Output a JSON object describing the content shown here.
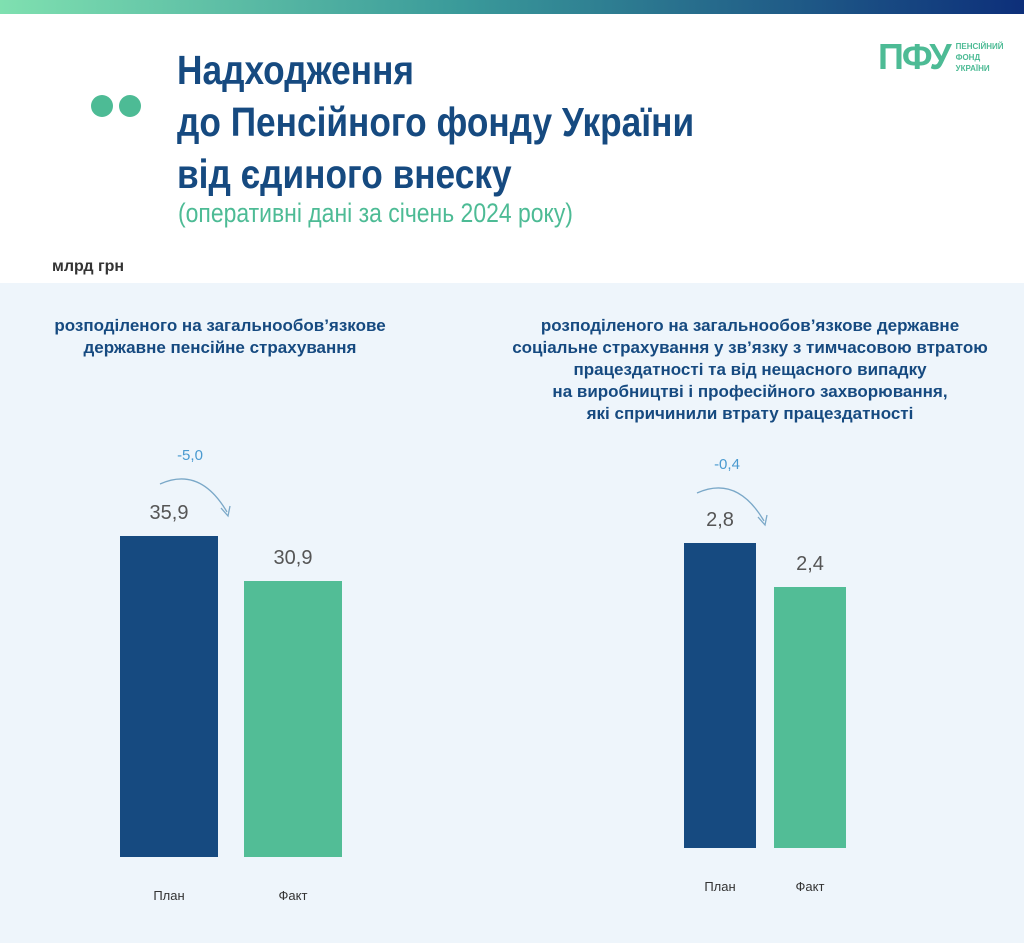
{
  "header": {
    "title_lines": [
      "Надходження",
      "до Пенсійного фонду України",
      "від єдиного внеску"
    ],
    "subtitle": "(оперативні дані за січень 2024 року)",
    "logo_big": "ПФУ",
    "logo_small": [
      "ПЕНСІЙНИЙ",
      "ФОНД",
      "УКРАЇНИ"
    ],
    "unit": "млрд грн"
  },
  "colors": {
    "plan": "#164a80",
    "fact": "#52bd96"
  },
  "chart_data": [
    {
      "type": "bar",
      "title": "розподіленого на загальнообов’язкове\nдержавне пенсійне страхування",
      "categories": [
        "План",
        "Факт"
      ],
      "values": [
        35.9,
        30.9
      ],
      "labels": [
        "35,9",
        "30,9"
      ],
      "difference": "-5,0",
      "ylabel": "млрд грн"
    },
    {
      "type": "bar",
      "title": "розподіленого на загальнообов’язкове державне\nсоціальне страхування у зв’язку з тимчасовою втратою\nпрацездатності та від нещасного випадку\nна виробництві і професійного захворювання,\nякі спричинили втрату працездатності",
      "categories": [
        "План",
        "Факт"
      ],
      "values": [
        2.8,
        2.4
      ],
      "labels": [
        "2,8",
        "2,4"
      ],
      "difference": "-0,4",
      "ylabel": "млрд грн"
    }
  ]
}
